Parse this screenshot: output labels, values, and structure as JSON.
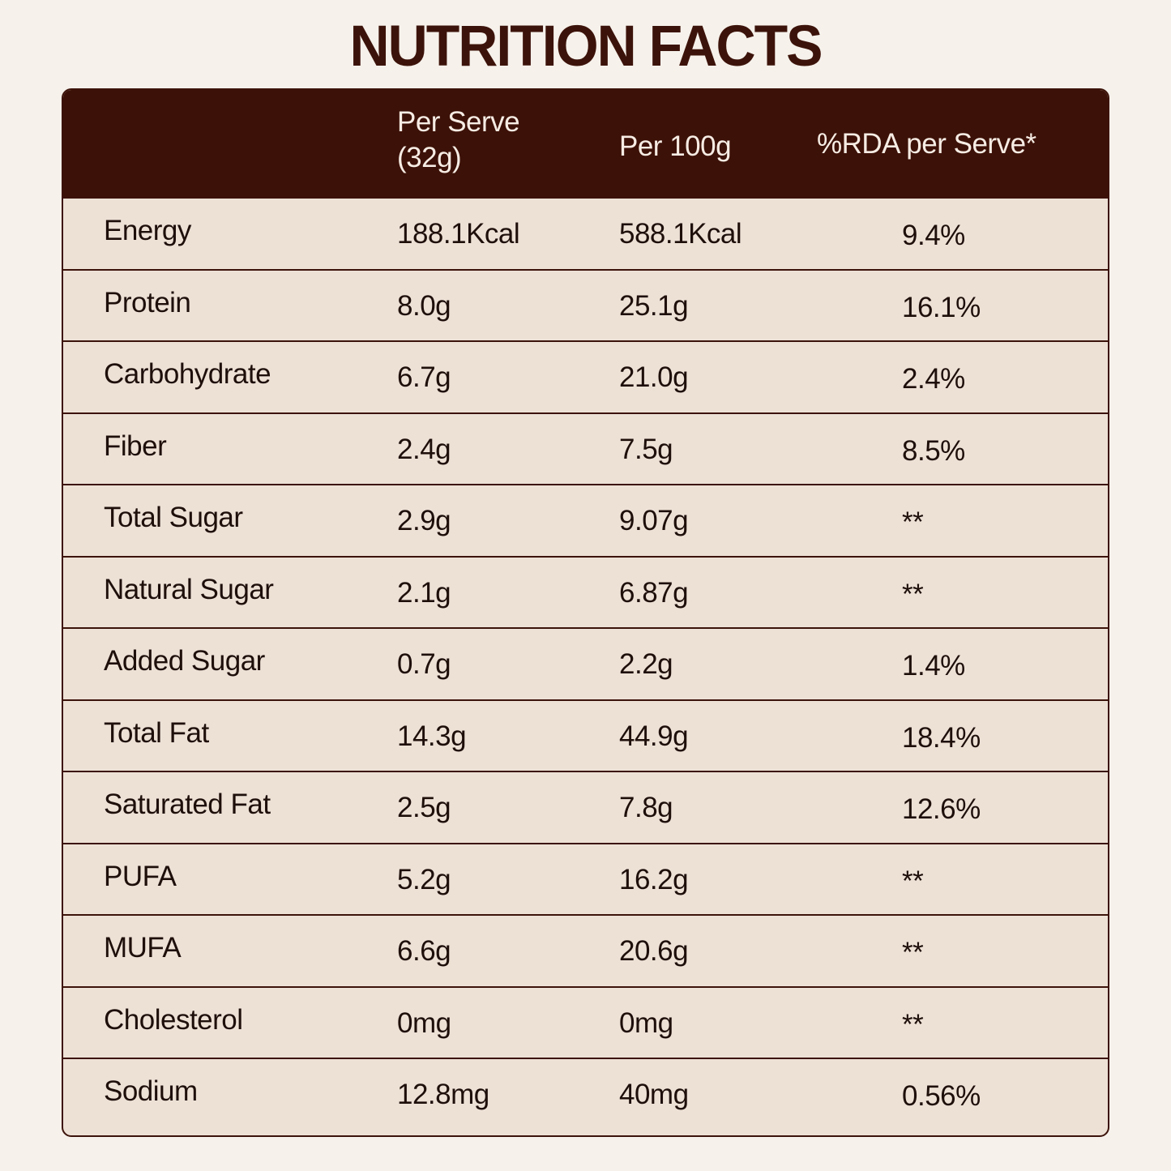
{
  "title": "NUTRITION FACTS",
  "header": {
    "col0": "",
    "col1_line1": "Per Serve",
    "col1_line2": "(32g)",
    "col2": "Per 100g",
    "col3": "%RDA per Serve*"
  },
  "rows": [
    {
      "name": "Energy",
      "serve": "188.1Kcal",
      "p100": "588.1Kcal",
      "rda": "9.4%"
    },
    {
      "name": "Protein",
      "serve": "8.0g",
      "p100": "25.1g",
      "rda": "16.1%"
    },
    {
      "name": "Carbohydrate",
      "serve": "6.7g",
      "p100": "21.0g",
      "rda": "2.4%"
    },
    {
      "name": "Fiber",
      "serve": "2.4g",
      "p100": "7.5g",
      "rda": "8.5%"
    },
    {
      "name": "Total Sugar",
      "serve": "2.9g",
      "p100": "9.07g",
      "rda": "**"
    },
    {
      "name": "Natural Sugar",
      "serve": "2.1g",
      "p100": "6.87g",
      "rda": "**"
    },
    {
      "name": "Added Sugar",
      "serve": "0.7g",
      "p100": "2.2g",
      "rda": "1.4%"
    },
    {
      "name": "Total Fat",
      "serve": "14.3g",
      "p100": "44.9g",
      "rda": "18.4%"
    },
    {
      "name": "Saturated Fat",
      "serve": "2.5g",
      "p100": "7.8g",
      "rda": "12.6%"
    },
    {
      "name": "PUFA",
      "serve": "5.2g",
      "p100": "16.2g",
      "rda": "**"
    },
    {
      "name": "MUFA",
      "serve": "6.6g",
      "p100": "20.6g",
      "rda": "**"
    },
    {
      "name": "Cholesterol",
      "serve": "0mg",
      "p100": "0mg",
      "rda": "**"
    },
    {
      "name": "Sodium",
      "serve": "12.8mg",
      "p100": "40mg",
      "rda": "0.56%"
    }
  ],
  "colors": {
    "background": "#f6f1eb",
    "header": "#3c1107",
    "body": "#ede1d6",
    "title": "#3c130a"
  }
}
